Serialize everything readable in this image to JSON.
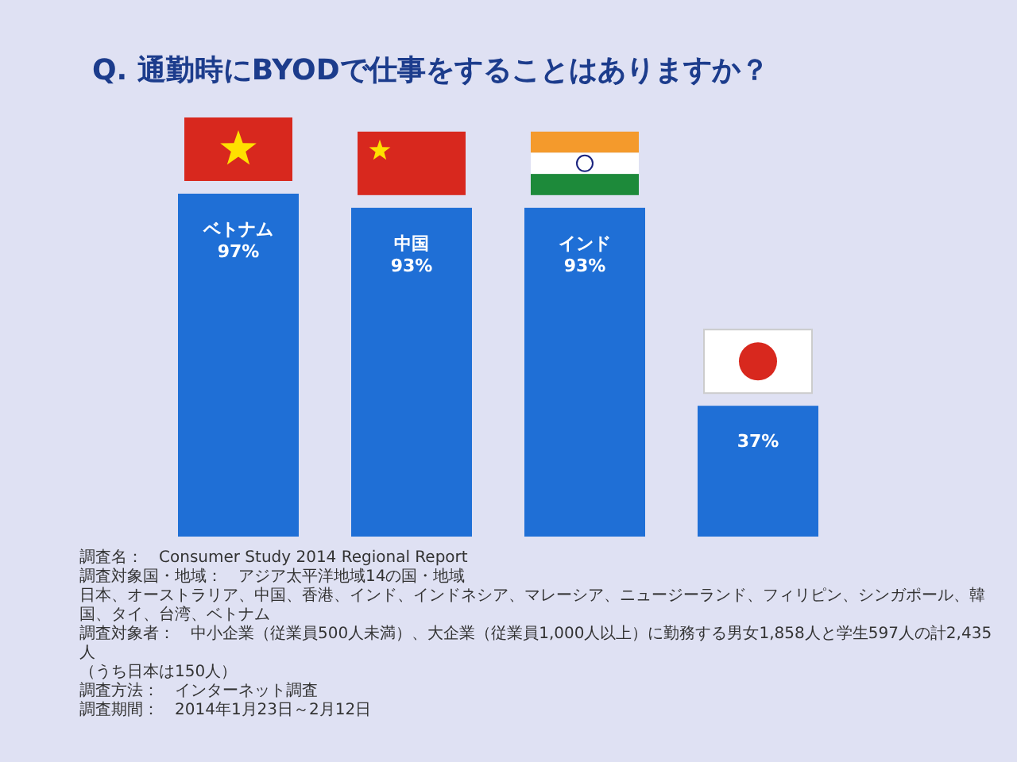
{
  "chart_data": {
    "type": "bar",
    "title": "Q. 通勤時にBYODで仕事をすることはありますか？",
    "categories": [
      "ベトナム",
      "中国",
      "インド",
      null
    ],
    "values": [
      97,
      93,
      93,
      37
    ],
    "value_labels": [
      "97%",
      "93%",
      "93%",
      "37%"
    ],
    "color": "#1f6fd6",
    "annotations": [
      "調査名：　Consumer Study 2014 Regional Report",
      "調査対象国・地域：　アジア太平洋地域14の国・地域",
      "日本、オーストラリア、中国、香港、インド、インドネシア、マレーシア、ニュージーランド、フィリピン、シンガポール、韓国、タイ、台湾、ベトナム",
      "調査対象者：　中小企業（従業員500人未満）、大企業（従業員1,000人以上）に勤務する男女1,858人と学生597人の計2,435人",
      "（うち日本は150人）",
      "調査方法：　インターネット調査",
      "調査期間：　2014年1月23日～2月12日"
    ]
  }
}
